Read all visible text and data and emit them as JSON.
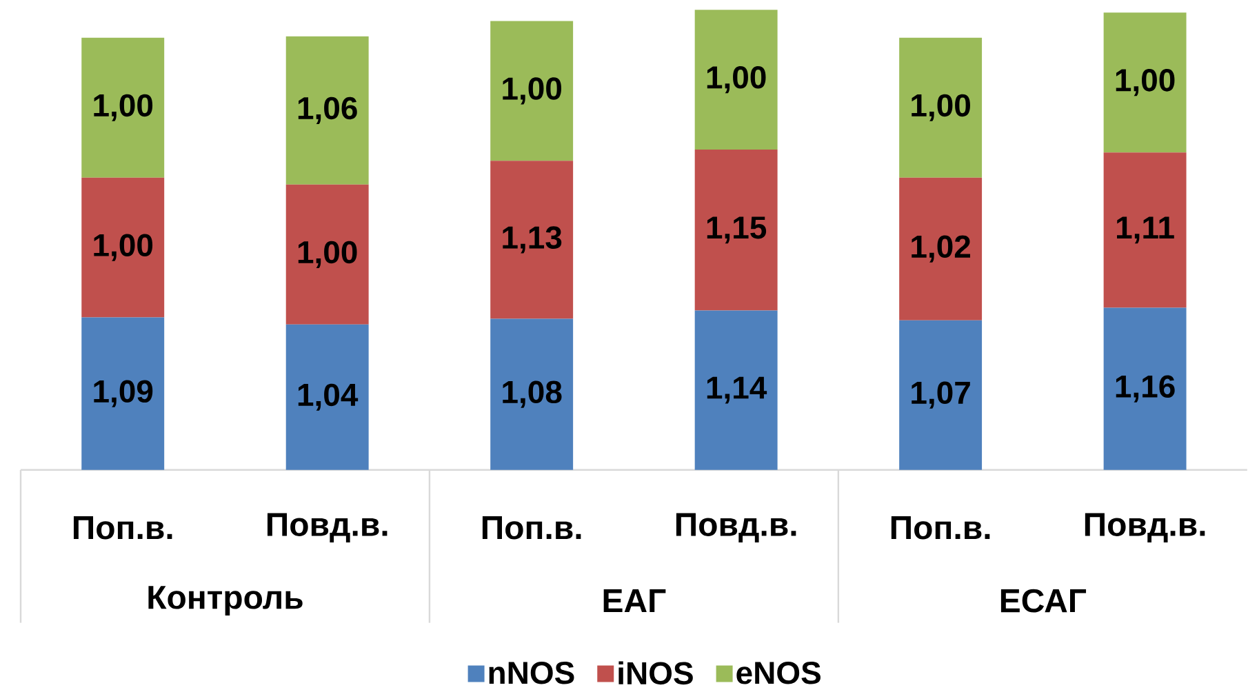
{
  "chart_data": {
    "type": "bar",
    "stacked": true,
    "categories": [
      "Поп.в.",
      "Повд.в.",
      "Поп.в.",
      "Повд.в.",
      "Поп.в.",
      "Повд.в."
    ],
    "series": [
      {
        "name": "nNOS",
        "color": "#4f81bd",
        "values": [
          1.09,
          1.04,
          1.08,
          1.14,
          1.07,
          1.16
        ],
        "value_labels": [
          "1,09",
          "1,04",
          "1,08",
          "1,14",
          "1,07",
          "1,16"
        ]
      },
      {
        "name": "iNOS",
        "color": "#c0504d",
        "values": [
          1.0,
          1.0,
          1.13,
          1.15,
          1.02,
          1.11
        ],
        "value_labels": [
          "1,00",
          "1,00",
          "1,13",
          "1,15",
          "1,02",
          "1,11"
        ]
      },
      {
        "name": "eNOS",
        "color": "#9bbb59",
        "values": [
          1.0,
          1.06,
          1.0,
          1.0,
          1.0,
          1.0
        ],
        "value_labels": [
          "1,00",
          "1,06",
          "1,00",
          "1,00",
          "1,00",
          "1,00"
        ]
      }
    ],
    "annotations": [
      "Контроль",
      "ЕАГ",
      "ЕСАГ"
    ],
    "legend": "bottom"
  }
}
